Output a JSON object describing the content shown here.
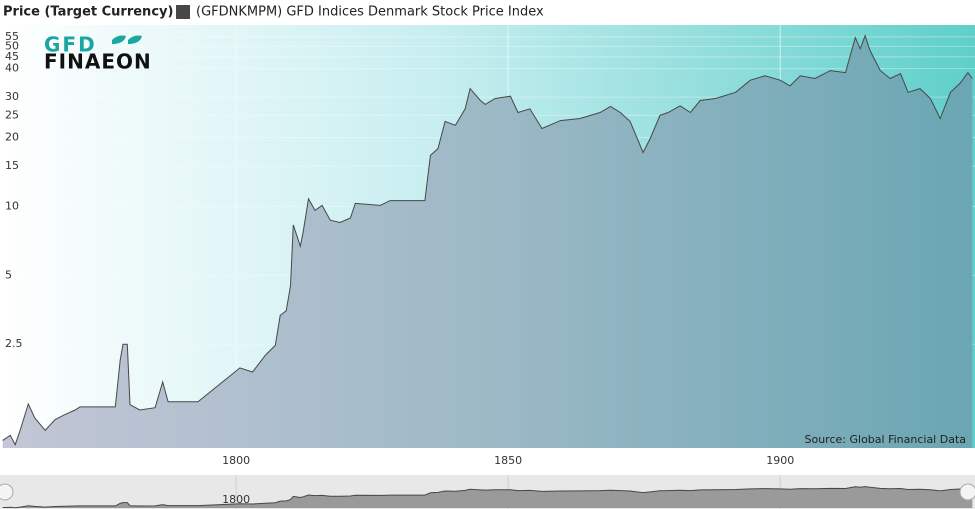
{
  "chart_data": {
    "type": "area",
    "title": "Price (Target Currency)",
    "logo": {
      "top": "GFD",
      "bottom": "FINAEON"
    },
    "annotations": [
      "Source: Global Financial Data"
    ],
    "log_scale": true,
    "grid": true,
    "x": [
      1757.1,
      1758.5,
      1759.4,
      1760.3,
      1761.8,
      1763,
      1764.9,
      1766.7,
      1768.5,
      1770.4,
      1771.3,
      1777.8,
      1778.7,
      1779.2,
      1780,
      1780.5,
      1782.3,
      1785.1,
      1786.5,
      1787.5,
      1793,
      1800.7,
      1803,
      1805.4,
      1807.2,
      1808.1,
      1809.2,
      1810,
      1810.5,
      1811.8,
      1812.3,
      1813.3,
      1814.5,
      1815.8,
      1817.3,
      1819.1,
      1821,
      1821.9,
      1826.5,
      1828.3,
      1834.7,
      1835.7,
      1837.1,
      1838.4,
      1840.3,
      1842.1,
      1843,
      1844.9,
      1845.8,
      1847.6,
      1850.4,
      1851.8,
      1854,
      1856.2,
      1859.6,
      1863.2,
      1866.9,
      1868.8,
      1870.6,
      1872.4,
      1874.8,
      1876.1,
      1877.9,
      1879.4,
      1881.6,
      1883.5,
      1885.3,
      1888.1,
      1891.8,
      1894.5,
      1897.2,
      1900,
      1901.8,
      1903.7,
      1906.4,
      1909.2,
      1912,
      1913.8,
      1914.7,
      1915.6,
      1916.5,
      1918.4,
      1920.2,
      1922.1,
      1923.5,
      1925.7,
      1927.6,
      1929.4,
      1931.3,
      1933.1,
      1934.5,
      1935.3
    ],
    "series": [
      {
        "name": "(GFDNKMPM) GFD Indices Denmark Stock Price Index",
        "color": "#474747",
        "values": [
          0.95,
          1.0,
          0.91,
          1.05,
          1.37,
          1.19,
          1.05,
          1.17,
          1.23,
          1.29,
          1.33,
          1.33,
          2.13,
          2.5,
          2.5,
          1.36,
          1.29,
          1.32,
          1.71,
          1.4,
          1.4,
          1.97,
          1.89,
          2.24,
          2.47,
          3.34,
          3.5,
          4.5,
          8.3,
          6.7,
          7.7,
          10.8,
          9.6,
          10.1,
          8.7,
          8.5,
          8.9,
          10.3,
          10.1,
          10.6,
          10.6,
          16.7,
          17.9,
          23.5,
          22.6,
          26.7,
          32.7,
          29,
          27.9,
          29.6,
          30.3,
          25.7,
          26.7,
          21.9,
          23.7,
          24.2,
          25.7,
          27.3,
          25.7,
          23.5,
          17.2,
          19.8,
          25,
          25.7,
          27.5,
          25.7,
          29,
          29.6,
          31.5,
          35.6,
          37.2,
          35.6,
          33.6,
          37.2,
          36.2,
          39.2,
          38.4,
          54.6,
          48.8,
          55.7,
          48,
          39.2,
          36.2,
          38,
          31.5,
          32.7,
          29.6,
          24.2,
          31.5,
          34.6,
          38.4,
          36.2
        ]
      }
    ],
    "xlim": [
      1756.6,
      1935.8
    ],
    "xticks": [
      1800,
      1850,
      1900
    ],
    "ylim": [
      0.88,
      62
    ],
    "yticks": [
      2.5,
      5,
      10,
      15,
      20,
      25,
      30,
      40,
      45,
      50,
      55
    ]
  }
}
